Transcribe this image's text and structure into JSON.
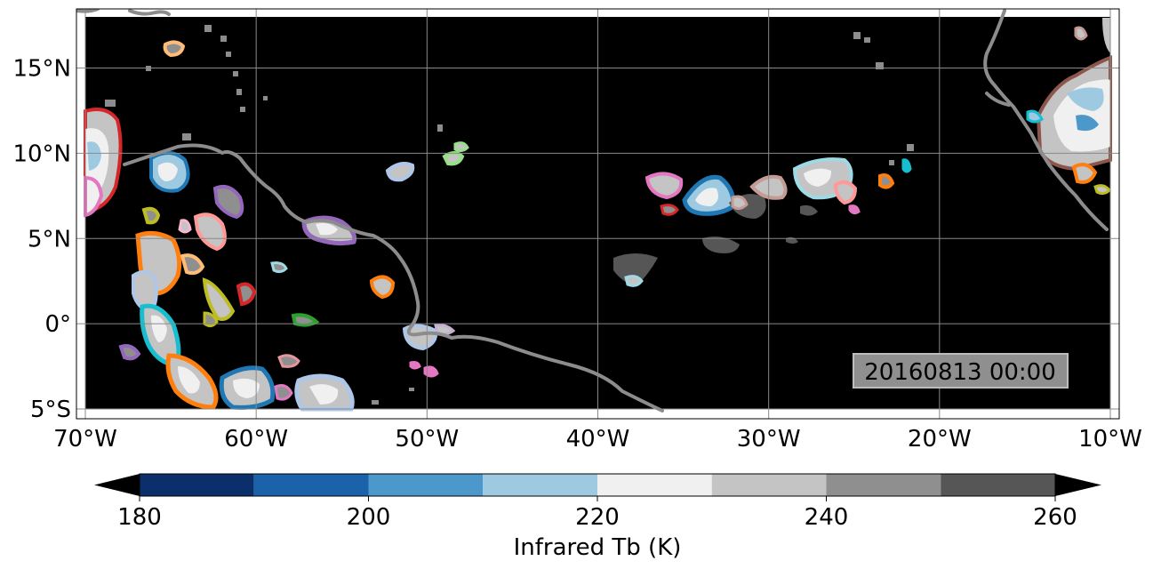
{
  "map": {
    "projection": "PlateCarree",
    "lon_range": [
      -70,
      -10
    ],
    "lat_range": [
      -5,
      18
    ],
    "gridlines": true,
    "background": "#000000",
    "coastline_color": "#8c8c8c",
    "lon_ticks": [
      {
        "value": -70,
        "label": "70°W"
      },
      {
        "value": -60,
        "label": "60°W"
      },
      {
        "value": -50,
        "label": "50°W"
      },
      {
        "value": -40,
        "label": "40°W"
      },
      {
        "value": -30,
        "label": "30°W"
      },
      {
        "value": -20,
        "label": "20°W"
      },
      {
        "value": -10,
        "label": "10°W"
      }
    ],
    "lat_ticks": [
      {
        "value": 15,
        "label": "15°N"
      },
      {
        "value": 10,
        "label": "10°N"
      },
      {
        "value": 5,
        "label": "5°N"
      },
      {
        "value": 0,
        "label": "0°"
      },
      {
        "value": -5,
        "label": "5°S"
      }
    ],
    "timestamp": "20160813 00:00"
  },
  "colorbar": {
    "label": "Infrared Tb (K)",
    "min": 180,
    "max": 260,
    "extend": "both",
    "bins": [
      {
        "from": 180,
        "to": 190,
        "color": "#0a2f6b"
      },
      {
        "from": 190,
        "to": 200,
        "color": "#1c62ab"
      },
      {
        "from": 200,
        "to": 210,
        "color": "#4d98cb"
      },
      {
        "from": 210,
        "to": 220,
        "color": "#9ecae1"
      },
      {
        "from": 220,
        "to": 230,
        "color": "#f0f0f0"
      },
      {
        "from": 230,
        "to": 240,
        "color": "#c4c4c4"
      },
      {
        "from": 240,
        "to": 250,
        "color": "#8f8f8f"
      },
      {
        "from": 250,
        "to": 260,
        "color": "#565656"
      }
    ],
    "under_color": "#000000",
    "over_color": "#000000",
    "ticks": [
      {
        "value": 180,
        "label": "180"
      },
      {
        "value": 200,
        "label": "200"
      },
      {
        "value": 220,
        "label": "220"
      },
      {
        "value": 240,
        "label": "240"
      },
      {
        "value": 260,
        "label": "260"
      }
    ]
  }
}
